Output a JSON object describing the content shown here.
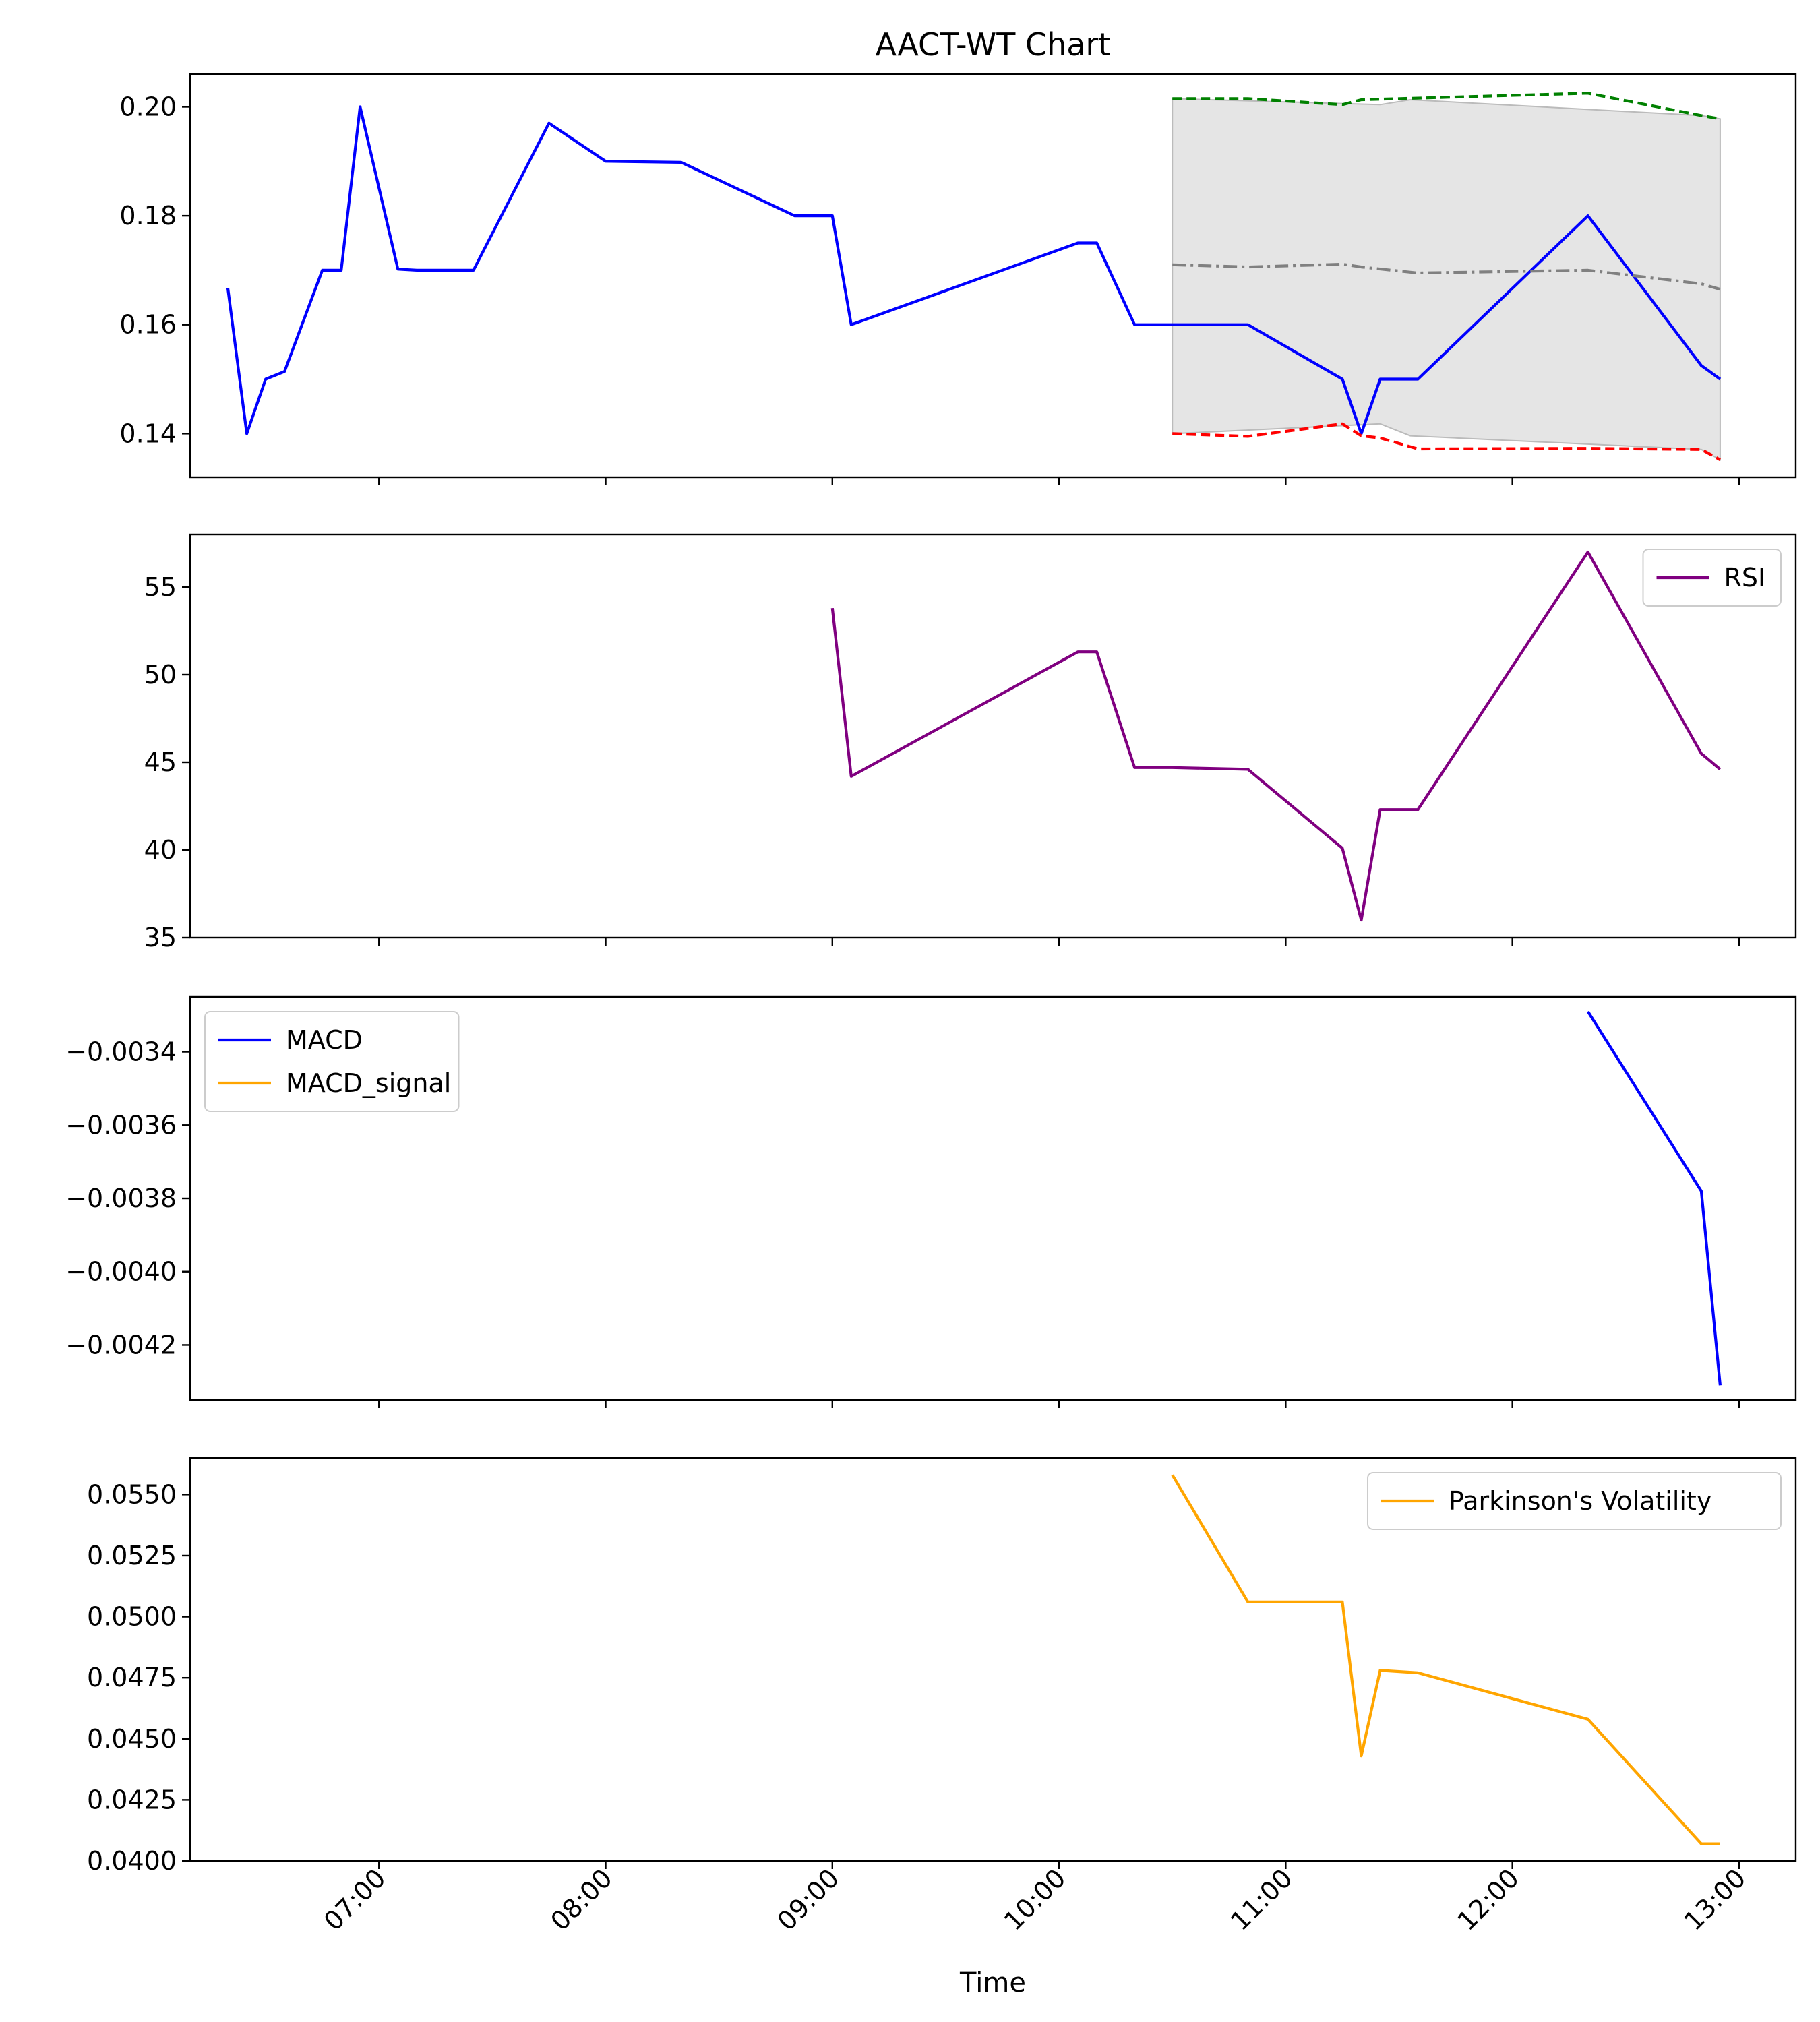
{
  "chart_data": {
    "type": "line",
    "title": "AACT-WT Chart",
    "xlabel": "Time",
    "x_ticks": [
      "07:00",
      "08:00",
      "09:00",
      "10:00",
      "11:00",
      "12:00",
      "13:00"
    ],
    "x_range": [
      "06:10",
      "13:15"
    ],
    "panels": [
      {
        "id": "price",
        "ylabel": "",
        "ylim": [
          0.132,
          0.206
        ],
        "y_ticks": [
          "0.14",
          "0.16",
          "0.18",
          "0.20"
        ],
        "legend": null,
        "band": {
          "color": "#cccccc",
          "x": [
            "10:30",
            "11:25",
            "11:33",
            "12:50",
            "12:55"
          ],
          "upper": [
            0.2015,
            0.2004,
            0.2013,
            0.1984,
            0.1978
          ],
          "lower": [
            0.14,
            0.1418,
            0.1396,
            0.1371,
            0.1352
          ]
        },
        "series": [
          {
            "name": "",
            "color": "#0000ff",
            "style": "solid",
            "x": [
              "06:20",
              "06:25",
              "06:30",
              "06:35",
              "06:45",
              "06:50",
              "06:55",
              "07:05",
              "07:10",
              "07:25",
              "07:45",
              "08:00",
              "08:20",
              "08:50",
              "09:00",
              "09:05",
              "10:05",
              "10:10",
              "10:20",
              "10:30",
              "10:50",
              "11:15",
              "11:20",
              "11:25",
              "11:30",
              "11:35",
              "12:20",
              "12:50",
              "12:55"
            ],
            "y": [
              0.1667,
              0.14,
              0.15,
              0.1514,
              0.17,
              0.17,
              0.2,
              0.1702,
              0.17,
              0.17,
              0.197,
              0.19,
              0.1898,
              0.18,
              0.18,
              0.16,
              0.175,
              0.175,
              0.16,
              0.16,
              0.16,
              0.15,
              0.14,
              0.15,
              0.15,
              0.15,
              0.18,
              0.1525,
              0.15
            ]
          },
          {
            "name": "",
            "color": "#008000",
            "style": "dashed",
            "x": [
              "10:30",
              "10:50",
              "11:15",
              "11:20",
              "12:20",
              "12:50",
              "12:55"
            ],
            "y": [
              0.2015,
              0.2015,
              0.2004,
              0.2013,
              0.2025,
              0.1984,
              0.1978
            ]
          },
          {
            "name": "",
            "color": "#808080",
            "style": "dashdot",
            "x": [
              "10:30",
              "10:50",
              "11:15",
              "11:20",
              "11:35",
              "12:20",
              "12:50",
              "12:55"
            ],
            "y": [
              0.171,
              0.1706,
              0.1711,
              0.1706,
              0.1695,
              0.17,
              0.1675,
              0.1665
            ]
          },
          {
            "name": "",
            "color": "#ff0000",
            "style": "dashed",
            "x": [
              "10:30",
              "10:50",
              "11:15",
              "11:20",
              "11:25",
              "11:35",
              "12:20",
              "12:50",
              "12:55"
            ],
            "y": [
              0.14,
              0.1395,
              0.1418,
              0.1396,
              0.1392,
              0.1372,
              0.1373,
              0.1371,
              0.1352
            ]
          }
        ]
      },
      {
        "id": "rsi",
        "ylabel": "",
        "ylim": [
          35,
          58
        ],
        "y_ticks": [
          "35",
          "40",
          "45",
          "50",
          "55"
        ],
        "legend": "top-right",
        "series": [
          {
            "name": "RSI",
            "color": "#800080",
            "style": "solid",
            "x": [
              "09:00",
              "09:05",
              "10:05",
              "10:10",
              "10:20",
              "10:30",
              "10:50",
              "11:15",
              "11:20",
              "11:25",
              "11:35",
              "12:20",
              "12:50",
              "12:55"
            ],
            "y": [
              53.8,
              44.2,
              51.3,
              51.3,
              44.7,
              44.7,
              44.6,
              40.1,
              36.0,
              42.3,
              42.3,
              57.0,
              45.5,
              44.6
            ]
          }
        ]
      },
      {
        "id": "macd",
        "ylabel": "",
        "ylim": [
          -0.00435,
          -0.00325
        ],
        "y_ticks": [
          "−0.0034",
          "−0.0036",
          "−0.0038",
          "−0.0040",
          "−0.0042"
        ],
        "y_tick_values": [
          -0.0034,
          -0.0036,
          -0.0038,
          -0.004,
          -0.0042
        ],
        "legend": "top-left",
        "series": [
          {
            "name": "MACD",
            "color": "#0000ff",
            "style": "solid",
            "x": [
              "12:20",
              "12:50",
              "12:55"
            ],
            "y": [
              -0.00329,
              -0.00378,
              -0.00431
            ]
          },
          {
            "name": "MACD_signal",
            "color": "#ffa500",
            "style": "solid",
            "x": [],
            "y": []
          }
        ]
      },
      {
        "id": "volatility",
        "ylabel": "",
        "ylim": [
          0.04,
          0.0565
        ],
        "y_ticks": [
          "0.0400",
          "0.0425",
          "0.0450",
          "0.0475",
          "0.0500",
          "0.0525",
          "0.0550"
        ],
        "legend": "top-right",
        "series": [
          {
            "name": "Parkinson's Volatility",
            "color": "#ffa500",
            "style": "solid",
            "x": [
              "10:30",
              "10:50",
              "11:15",
              "11:20",
              "11:25",
              "11:35",
              "12:20",
              "12:50",
              "12:55"
            ],
            "y": [
              0.0558,
              0.0506,
              0.0506,
              0.0443,
              0.0478,
              0.0477,
              0.0458,
              0.0407,
              0.0407
            ]
          }
        ]
      }
    ]
  }
}
